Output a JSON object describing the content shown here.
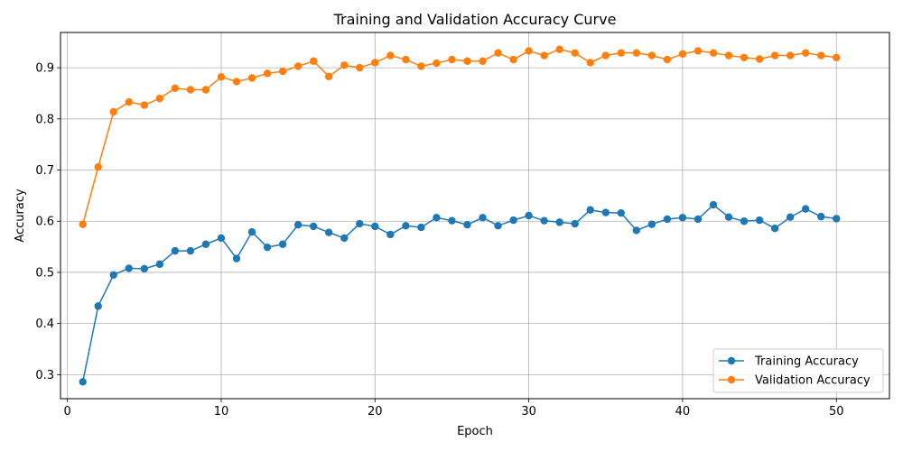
{
  "chart_data": {
    "type": "line",
    "title": "Training and Validation Accuracy Curve",
    "xlabel": "Epoch",
    "ylabel": "Accuracy",
    "xlim": [
      -0.45,
      53.45
    ],
    "ylim": [
      0.253,
      0.969
    ],
    "xticks": [
      0,
      10,
      20,
      30,
      40,
      50
    ],
    "yticks": [
      0.3,
      0.4,
      0.5,
      0.6,
      0.7,
      0.8,
      0.9
    ],
    "grid": true,
    "legend_position": "bottom-right",
    "x": [
      1,
      2,
      3,
      4,
      5,
      6,
      7,
      8,
      9,
      10,
      11,
      12,
      13,
      14,
      15,
      16,
      17,
      18,
      19,
      20,
      21,
      22,
      23,
      24,
      25,
      26,
      27,
      28,
      29,
      30,
      31,
      32,
      33,
      34,
      35,
      36,
      37,
      38,
      39,
      40,
      41,
      42,
      43,
      44,
      45,
      46,
      47,
      48,
      49,
      50
    ],
    "series": [
      {
        "name": "Training Accuracy",
        "color": "#1f77b4",
        "values": [
          0.286,
          0.434,
          0.495,
          0.508,
          0.507,
          0.516,
          0.542,
          0.542,
          0.555,
          0.567,
          0.527,
          0.579,
          0.549,
          0.555,
          0.593,
          0.59,
          0.578,
          0.567,
          0.595,
          0.59,
          0.574,
          0.591,
          0.588,
          0.607,
          0.601,
          0.593,
          0.607,
          0.591,
          0.602,
          0.611,
          0.601,
          0.598,
          0.595,
          0.622,
          0.617,
          0.616,
          0.582,
          0.594,
          0.604,
          0.607,
          0.604,
          0.632,
          0.608,
          0.6,
          0.602,
          0.586,
          0.608,
          0.624,
          0.609,
          0.605
        ]
      },
      {
        "name": "Validation Accuracy",
        "color": "#ff7f0e",
        "values": [
          0.594,
          0.706,
          0.814,
          0.833,
          0.827,
          0.84,
          0.86,
          0.857,
          0.857,
          0.882,
          0.873,
          0.88,
          0.889,
          0.893,
          0.903,
          0.913,
          0.883,
          0.905,
          0.9,
          0.91,
          0.924,
          0.916,
          0.903,
          0.909,
          0.916,
          0.913,
          0.913,
          0.929,
          0.916,
          0.933,
          0.924,
          0.936,
          0.929,
          0.91,
          0.924,
          0.929,
          0.929,
          0.924,
          0.916,
          0.927,
          0.933,
          0.929,
          0.924,
          0.92,
          0.917,
          0.924,
          0.924,
          0.929,
          0.924,
          0.92
        ]
      }
    ]
  }
}
